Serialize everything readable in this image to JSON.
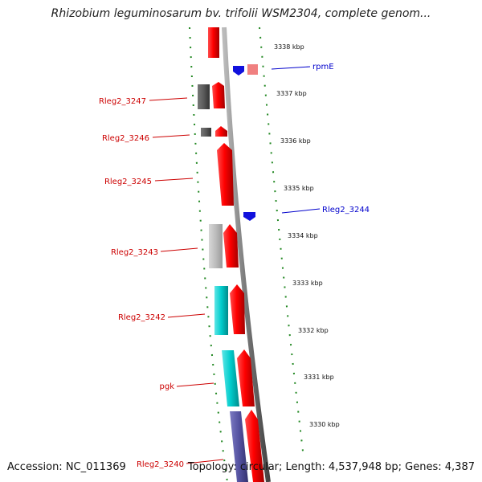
{
  "header": {
    "title": "Rhizobium leguminosarum bv. trifolii WSM2304, complete genom..."
  },
  "footer": {
    "accession": "Accession: NC_011369",
    "summary": "Topology: circular; Length: 4,537,948 bp; Genes: 4,387"
  },
  "colors": {
    "forward_gene": "#ff0000",
    "reverse_gene": "#0000ee",
    "label_forward": "#cc0000",
    "label_reverse": "#0000cc",
    "ticks": "#228822",
    "backbone": "#777777"
  },
  "scale_ticks": [
    "3338 kbp",
    "3337 kbp",
    "3336 kbp",
    "3335 kbp",
    "3334 kbp",
    "3333 kbp",
    "3332 kbp",
    "3331 kbp",
    "3330 kbp"
  ],
  "gene_labels": {
    "rpmE": "rpmE",
    "rleg2_3247": "Rleg2_3247",
    "rleg2_3246": "Rleg2_3246",
    "rleg2_3245": "Rleg2_3245",
    "rleg2_3244": "Rleg2_3244",
    "rleg2_3243": "Rleg2_3243",
    "rleg2_3242": "Rleg2_3242",
    "pgk": "pgk",
    "rleg2_3240": "Rleg2_3240"
  }
}
